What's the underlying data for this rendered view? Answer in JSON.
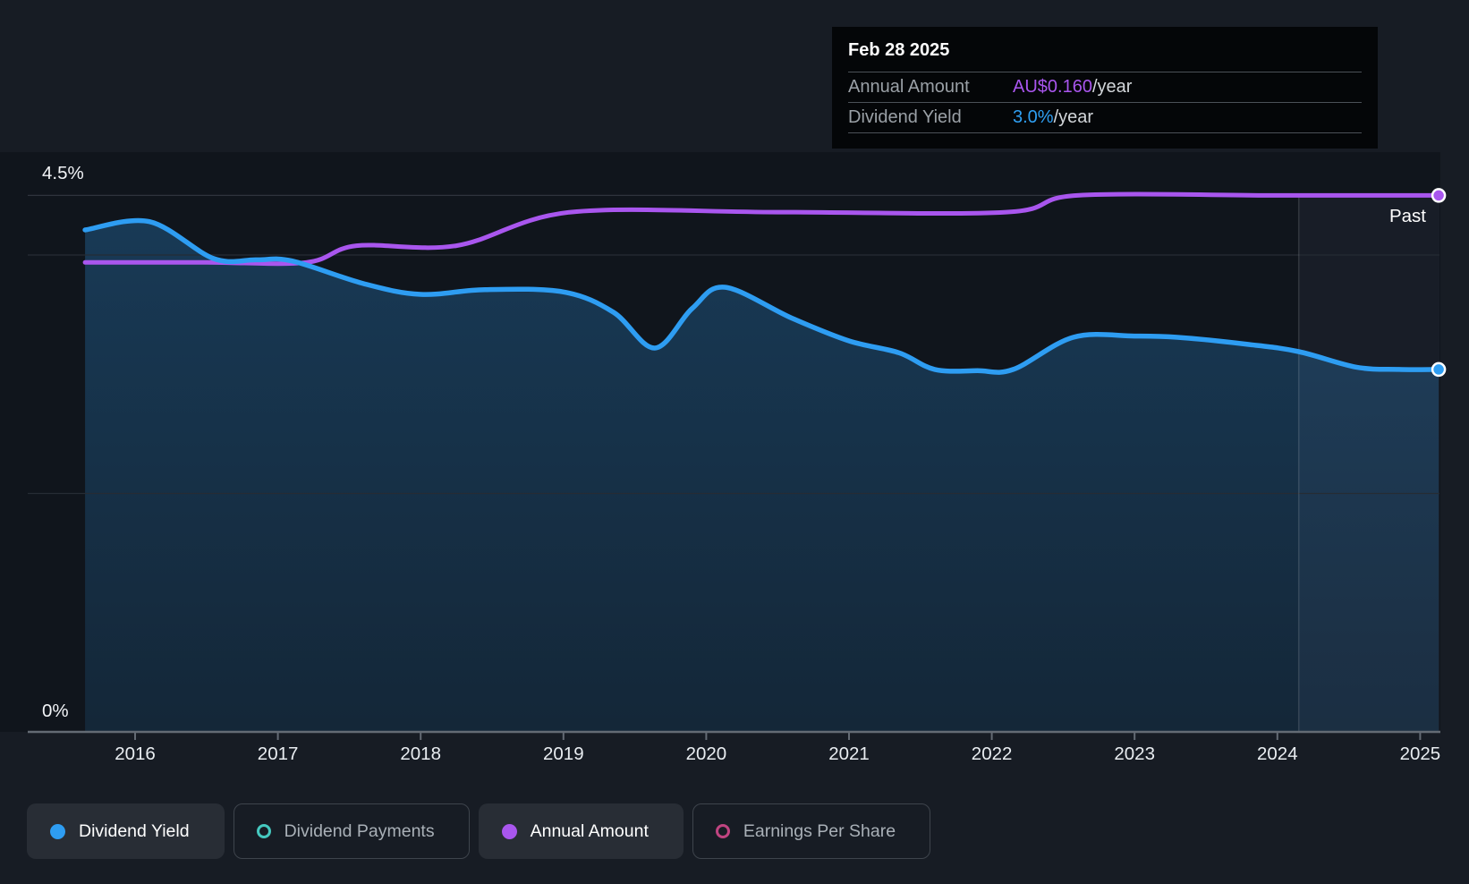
{
  "tooltip": {
    "date": "Feb 28 2025",
    "rows": [
      {
        "label": "Annual Amount",
        "value": "AU$0.160",
        "suffix": "/year",
        "color": "#a956ee"
      },
      {
        "label": "Dividend Yield",
        "value": "3.0%",
        "suffix": "/year",
        "color": "#2f9ff2"
      }
    ]
  },
  "past_label": "Past",
  "axis_labels": {
    "y_top": "4.5%",
    "y_bottom": "0%"
  },
  "legend": {
    "items": [
      {
        "label": "Dividend Yield",
        "marker": "filled",
        "color": "#2e9df2",
        "selected": true
      },
      {
        "label": "Dividend Payments",
        "marker": "outline",
        "color": "#45c8bf",
        "selected": false
      },
      {
        "label": "Annual Amount",
        "marker": "filled",
        "color": "#a956ee",
        "selected": true
      },
      {
        "label": "Earnings Per Share",
        "marker": "outline",
        "color": "#bf4480",
        "selected": false
      }
    ]
  },
  "chart_data": {
    "type": "area",
    "x_domain": [
      2015.65,
      2025.13
    ],
    "x_ticks": [
      2016,
      2017,
      2018,
      2019,
      2020,
      2021,
      2022,
      2023,
      2024,
      2025
    ],
    "ylim_percent": [
      0,
      4.5
    ],
    "y_gridlines_percent": [
      4.5,
      4,
      2,
      0
    ],
    "y_axis_top_label_value": 4.5,
    "amount_axis_max": 0.16,
    "past_divider_x": 2024.15,
    "legend_position": "bottom",
    "series": [
      {
        "name": "Dividend Yield",
        "unit": "%",
        "axis": "percent",
        "color": "#2e9df2",
        "area": true,
        "end_value_label": "3.0%/year",
        "points": [
          [
            2015.65,
            4.21
          ],
          [
            2016.1,
            4.28
          ],
          [
            2016.55,
            3.97
          ],
          [
            2016.85,
            3.96
          ],
          [
            2017.1,
            3.95
          ],
          [
            2017.6,
            3.76
          ],
          [
            2018.0,
            3.67
          ],
          [
            2018.45,
            3.71
          ],
          [
            2019.0,
            3.69
          ],
          [
            2019.35,
            3.52
          ],
          [
            2019.64,
            3.22
          ],
          [
            2019.9,
            3.55
          ],
          [
            2020.13,
            3.73
          ],
          [
            2020.6,
            3.47
          ],
          [
            2021.0,
            3.28
          ],
          [
            2021.35,
            3.18
          ],
          [
            2021.6,
            3.04
          ],
          [
            2021.9,
            3.03
          ],
          [
            2022.15,
            3.04
          ],
          [
            2022.57,
            3.31
          ],
          [
            2023.0,
            3.32
          ],
          [
            2023.3,
            3.31
          ],
          [
            2023.8,
            3.25
          ],
          [
            2024.15,
            3.19
          ],
          [
            2024.55,
            3.06
          ],
          [
            2024.85,
            3.04
          ],
          [
            2025.13,
            3.04
          ]
        ]
      },
      {
        "name": "Annual Amount",
        "unit": "AU$",
        "axis": "amount",
        "color": "#a956ee",
        "area": false,
        "end_value_label": "AU$0.160/year",
        "points": [
          [
            2015.65,
            0.14
          ],
          [
            2016.5,
            0.14
          ],
          [
            2017.2,
            0.14
          ],
          [
            2017.55,
            0.145
          ],
          [
            2018.25,
            0.145
          ],
          [
            2019.05,
            0.155
          ],
          [
            2020.5,
            0.155
          ],
          [
            2022.1,
            0.155
          ],
          [
            2022.6,
            0.16
          ],
          [
            2024.0,
            0.16
          ],
          [
            2025.13,
            0.16
          ]
        ]
      }
    ]
  }
}
